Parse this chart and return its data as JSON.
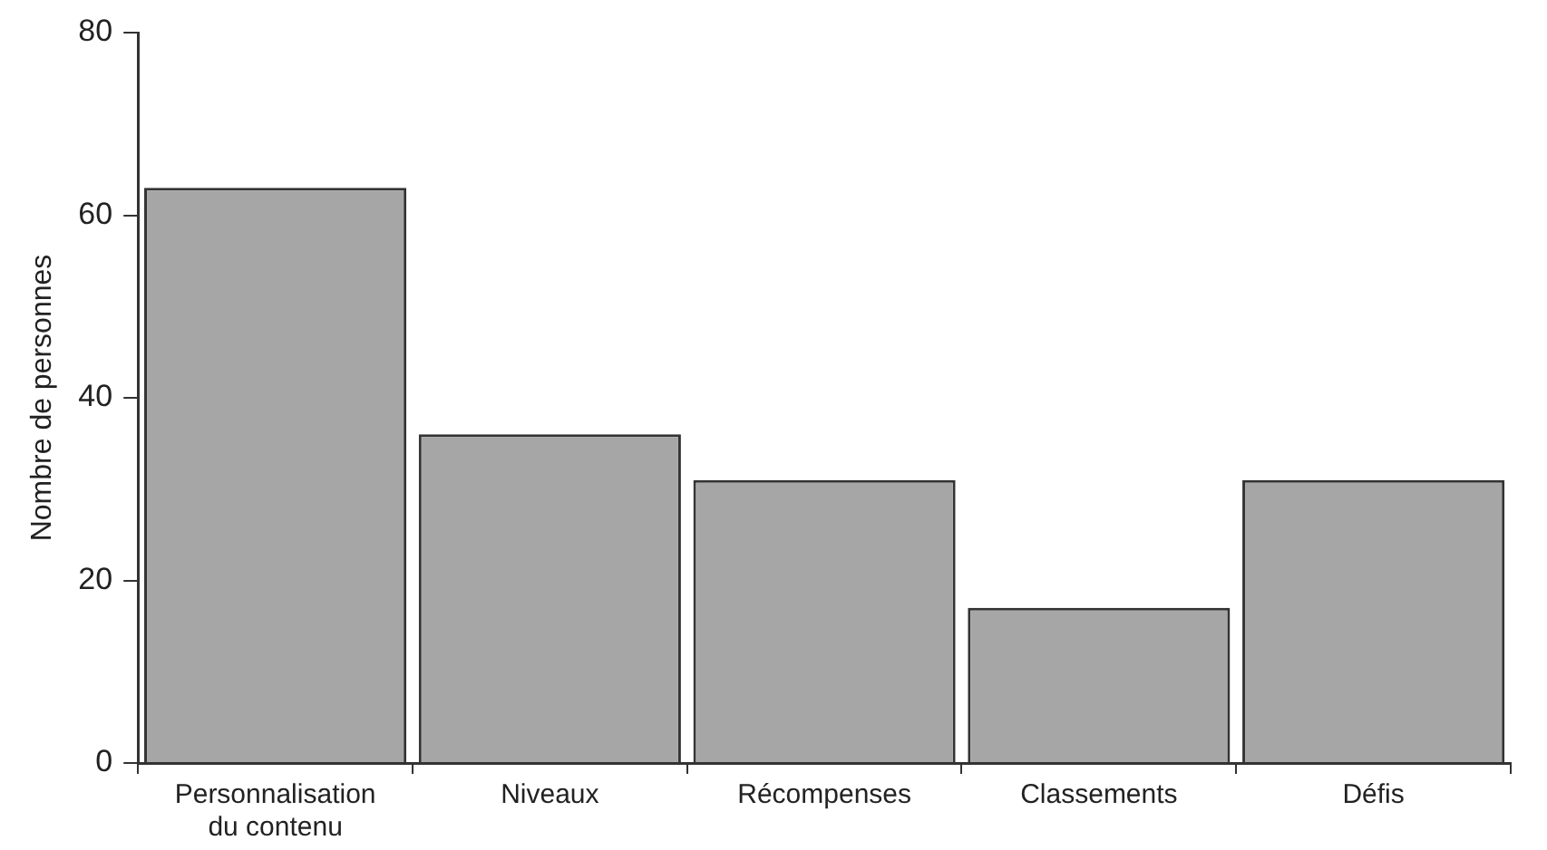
{
  "chart_data": {
    "type": "bar",
    "ylabel": "Nombre de personnes",
    "categories": [
      "Personnalisation du contenu",
      "Niveaux",
      "Récompenses",
      "Classements",
      "Défis"
    ],
    "values": [
      63,
      36,
      31,
      17,
      31
    ],
    "color": "#a6a6a6",
    "ylim": [
      0,
      80
    ],
    "yticks": [
      0,
      20,
      40,
      60,
      80
    ],
    "grid": false,
    "legend": false
  }
}
